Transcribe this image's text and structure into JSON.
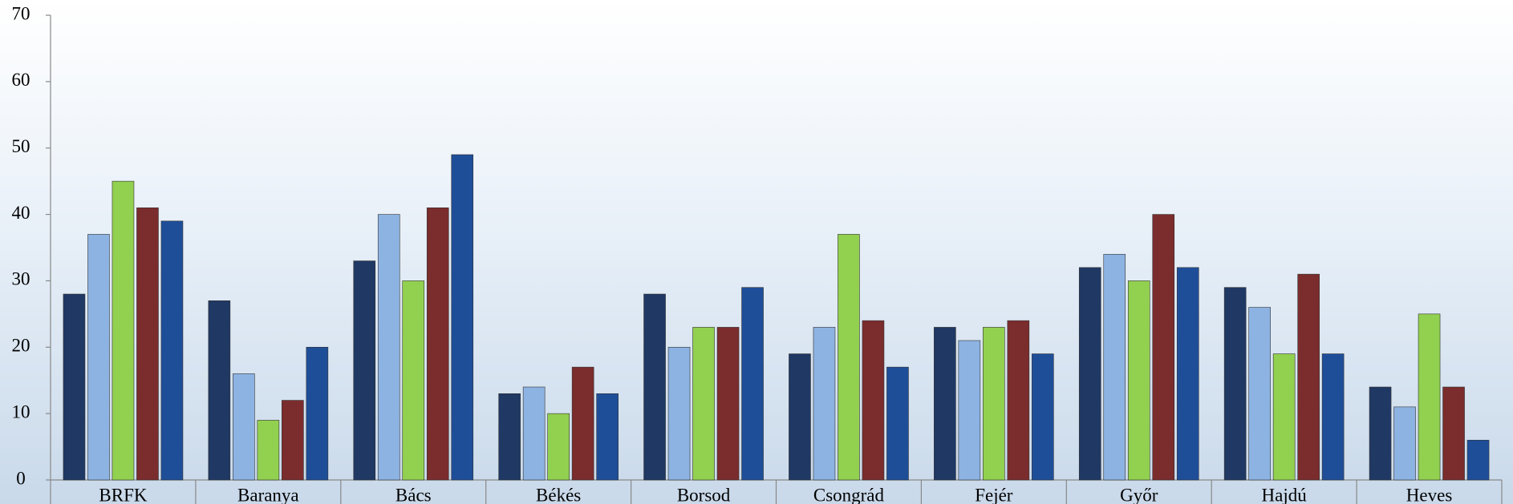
{
  "chart_data": {
    "type": "bar",
    "categories": [
      "BRFK",
      "Baranya",
      "Bács",
      "Békés",
      "Borsod",
      "Csongrád",
      "Fejér",
      "Győr",
      "Hajdú",
      "Heves"
    ],
    "series": [
      {
        "color": "#1f3864",
        "values": [
          28,
          27,
          33,
          13,
          28,
          19,
          23,
          32,
          29,
          14
        ]
      },
      {
        "color": "#8db3e2",
        "values": [
          37,
          16,
          40,
          14,
          20,
          23,
          21,
          34,
          26,
          11
        ]
      },
      {
        "color": "#92d050",
        "values": [
          45,
          9,
          30,
          10,
          23,
          37,
          23,
          30,
          19,
          25
        ]
      },
      {
        "color": "#7b2c2c",
        "values": [
          41,
          12,
          41,
          17,
          23,
          24,
          24,
          40,
          31,
          14
        ]
      },
      {
        "color": "#1f4e99",
        "values": [
          39,
          20,
          49,
          13,
          29,
          17,
          19,
          32,
          19,
          6
        ]
      }
    ],
    "ylim": [
      0,
      70
    ],
    "yticks": [
      0,
      10,
      20,
      30,
      40,
      50,
      60,
      70
    ]
  }
}
